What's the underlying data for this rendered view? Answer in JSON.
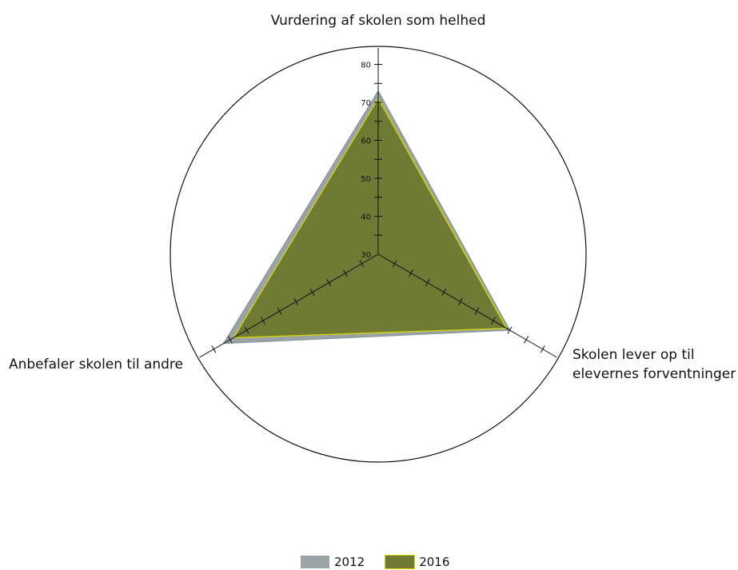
{
  "chart_data": {
    "type": "radar",
    "axes": [
      "Vurdering af skolen som helhed",
      "Skolen lever op til elevernes forventninger",
      "Anbefaler skolen til andre"
    ],
    "axis_label_lines": [
      [
        "Vurdering af skolen som helhed"
      ],
      [
        "Skolen lever op til",
        "elevernes forventninger"
      ],
      [
        "Anbefaler skolen til andre"
      ]
    ],
    "range": [
      30,
      85
    ],
    "tick_values": [
      30,
      40,
      50,
      60,
      70,
      80
    ],
    "minor_tick_step": 5,
    "series": [
      {
        "name": "2012",
        "values": [
          73,
          70,
          77
        ],
        "color": "#9aa3a6",
        "stroke": "#8b9598"
      },
      {
        "name": "2016",
        "values": [
          71,
          69,
          74
        ],
        "color": "#6f7a34",
        "stroke": "#d6d600"
      }
    ],
    "legend_position": "bottom-center"
  }
}
